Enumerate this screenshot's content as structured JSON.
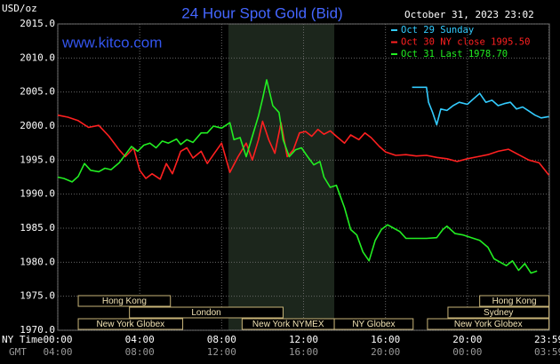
{
  "chart_data": {
    "type": "line",
    "title": "24 Hour Spot Gold (Bid)",
    "y_label": "USD/oz",
    "website": "www.kitco.com",
    "timestamp": "October 31, 2023 23:02",
    "x_row_label": "NY Time",
    "x2_row_label": "GMT",
    "xlim": [
      0,
      24
    ],
    "ylim": [
      1970,
      2015
    ],
    "grid": true,
    "legend": "top-right",
    "highlight": [
      8.33,
      13.5
    ],
    "yticks": [
      {
        "value": 1970,
        "label": "1970.0"
      },
      {
        "value": 1975,
        "label": "1975.0"
      },
      {
        "value": 1980,
        "label": "1980.0"
      },
      {
        "value": 1985,
        "label": "1985.0"
      },
      {
        "value": 1990,
        "label": "1990.0"
      },
      {
        "value": 1995,
        "label": "1995.0"
      },
      {
        "value": 2000,
        "label": "2000.0"
      },
      {
        "value": 2005,
        "label": "2005.0"
      },
      {
        "value": 2010,
        "label": "2010.0"
      },
      {
        "value": 2015,
        "label": "2015.0"
      }
    ],
    "xticks": [
      {
        "value": 0,
        "label": "00:00"
      },
      {
        "value": 4,
        "label": "04:00"
      },
      {
        "value": 8,
        "label": "08:00"
      },
      {
        "value": 12,
        "label": "12:00"
      },
      {
        "value": 16,
        "label": "16:00"
      },
      {
        "value": 20,
        "label": "20:00"
      },
      {
        "value": 23.98,
        "label": "23:59"
      }
    ],
    "x2ticks": [
      {
        "value": 0,
        "label": "04:00"
      },
      {
        "value": 4,
        "label": "08:00"
      },
      {
        "value": 8,
        "label": "12:00"
      },
      {
        "value": 12,
        "label": "16:00"
      },
      {
        "value": 16,
        "label": "20:00"
      },
      {
        "value": 20,
        "label": "00:00"
      },
      {
        "value": 23.98,
        "label": "03:59"
      }
    ],
    "sessions": [
      [
        {
          "name": "Hong Kong",
          "start": 1,
          "end": 5.5
        },
        {
          "name": "Hong Kong",
          "start": 20.6,
          "end": 23.98
        }
      ],
      [
        {
          "name": "London",
          "start": 3.5,
          "end": 11
        },
        {
          "name": "Sydney",
          "start": 19.05,
          "end": 23.98
        }
      ],
      [
        {
          "name": "New York Globex",
          "start": 1,
          "end": 6.1
        },
        {
          "name": "New York NYMEX",
          "start": 9,
          "end": 13.5
        },
        {
          "name": "NY Globex",
          "start": 13.5,
          "end": 17.35
        },
        {
          "name": "New York Globex",
          "start": 18.05,
          "end": 23.98
        }
      ]
    ],
    "series": [
      {
        "name": "Oct 29 Sunday",
        "color": "#33ccff",
        "x": [
          17.3,
          18,
          18.1,
          18.3,
          18.5,
          18.7,
          19,
          19.3,
          19.6,
          20,
          20.3,
          20.6,
          20.9,
          21.2,
          21.5,
          21.8,
          22.1,
          22.4,
          22.7,
          23,
          23.3,
          23.6,
          23.98
        ],
        "values": [
          2005.7,
          2005.7,
          2003.5,
          2002,
          2000.2,
          2002.5,
          2002.3,
          2003,
          2003.5,
          2003.2,
          2004,
          2004.8,
          2003.5,
          2003.8,
          2003,
          2003.3,
          2003.5,
          2002.5,
          2002.8,
          2002.2,
          2001.6,
          2001.2,
          2001.4
        ]
      },
      {
        "name": "Oct 30 NY close 1995.50",
        "color": "#ff2020",
        "x": [
          0,
          0.5,
          1,
          1.5,
          2,
          2.5,
          3,
          3.3,
          3.7,
          4,
          4.3,
          4.6,
          5,
          5.3,
          5.6,
          6,
          6.3,
          6.6,
          7,
          7.3,
          7.6,
          8,
          8.4,
          8.8,
          9.2,
          9.5,
          9.8,
          10,
          10.3,
          10.6,
          10.9,
          11.2,
          11.5,
          11.8,
          12.1,
          12.4,
          12.7,
          13,
          13.3,
          13.6,
          14,
          14.3,
          14.7,
          15,
          15.3,
          15.7,
          16,
          16.5,
          17,
          17.5,
          18,
          18.5,
          19,
          19.5,
          20,
          20.5,
          21,
          21.5,
          22,
          22.5,
          23,
          23.5,
          23.98
        ],
        "values": [
          2001.6,
          2001.3,
          2000.8,
          1999.8,
          2000.1,
          1998.5,
          1996.5,
          1995.5,
          1996.8,
          1993.5,
          1992.3,
          1993,
          1992.2,
          1994.5,
          1993,
          1996.3,
          1996.8,
          1995.3,
          1996.3,
          1994.5,
          1995.8,
          1997.5,
          1993.2,
          1995.5,
          1997.5,
          1995,
          1998,
          2000.7,
          1998,
          1996,
          2000.5,
          1995.5,
          1996.5,
          1999,
          1999.2,
          1998.5,
          1999.5,
          1998.8,
          1999.3,
          1998.5,
          1997.5,
          1998.7,
          1998,
          1999,
          1998.3,
          1997,
          1996.2,
          1995.7,
          1995.8,
          1995.6,
          1995.7,
          1995.4,
          1995.2,
          1994.8,
          1995.2,
          1995.5,
          1995.8,
          1996.3,
          1996.6,
          1995.8,
          1995,
          1994.6,
          1992.8
        ]
      },
      {
        "name": "Oct 31 Last 1978.70",
        "color": "#22ee22",
        "x": [
          0,
          0.3,
          0.7,
          1,
          1.3,
          1.6,
          2,
          2.3,
          2.6,
          3,
          3.3,
          3.6,
          3.9,
          4.2,
          4.5,
          4.8,
          5.1,
          5.4,
          5.8,
          6,
          6.3,
          6.6,
          7,
          7.3,
          7.6,
          8,
          8.4,
          8.6,
          8.9,
          9.2,
          9.5,
          9.8,
          10,
          10.2,
          10.5,
          10.8,
          11,
          11.3,
          11.6,
          11.9,
          12.2,
          12.5,
          12.8,
          13,
          13.3,
          13.6,
          14,
          14.3,
          14.6,
          14.9,
          15.2,
          15.5,
          15.8,
          16.1,
          16.4,
          16.7,
          17,
          17.5,
          18,
          18.5,
          18.8,
          19,
          19.4,
          19.8,
          20.2,
          20.6,
          21,
          21.3,
          21.6,
          21.9,
          22.2,
          22.5,
          22.8,
          23.1,
          23.4
        ],
        "values": [
          1992.5,
          1992.3,
          1991.8,
          1992.6,
          1994.5,
          1993.5,
          1993.3,
          1993.8,
          1993.6,
          1994.6,
          1995.8,
          1997,
          1996.3,
          1997.2,
          1997.5,
          1996.8,
          1997.8,
          1997.5,
          1998.1,
          1997.3,
          1998,
          1997.6,
          1999,
          1999,
          2000,
          1999.7,
          2000.5,
          1998,
          1998.3,
          1995.5,
          1998.5,
          2001.5,
          2004,
          2006.8,
          2003,
          2002,
          1998,
          1995.5,
          1996.5,
          1996.8,
          1995.5,
          1994.3,
          1994.8,
          1992.5,
          1991,
          1991.3,
          1988,
          1984.8,
          1984,
          1981.5,
          1980.2,
          1983.2,
          1984.8,
          1985.5,
          1985,
          1984.5,
          1983.5,
          1983.5,
          1983.5,
          1983.6,
          1984.8,
          1985.3,
          1984.2,
          1984,
          1983.6,
          1983.2,
          1982.2,
          1980.5,
          1980,
          1979.5,
          1980.2,
          1978.8,
          1979.8,
          1978.4,
          1978.7
        ]
      }
    ]
  }
}
